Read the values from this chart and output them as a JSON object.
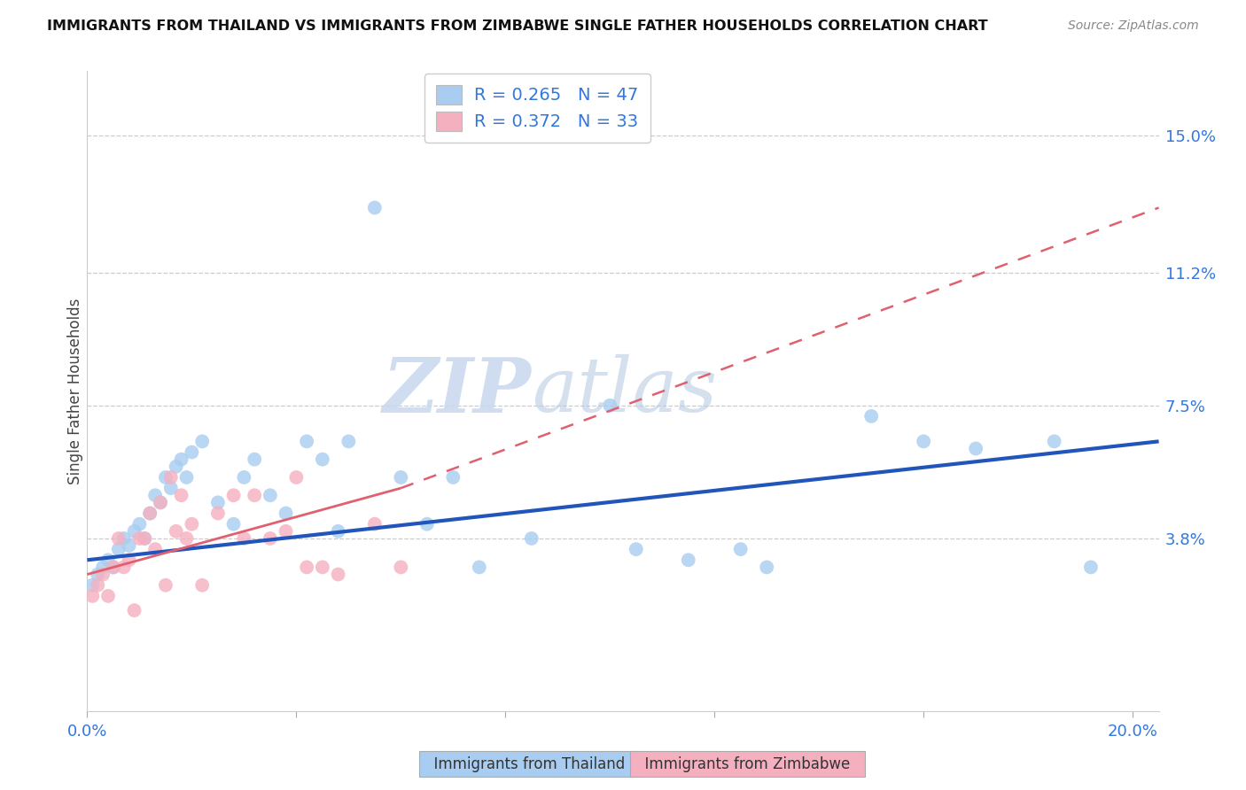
{
  "title": "IMMIGRANTS FROM THAILAND VS IMMIGRANTS FROM ZIMBABWE SINGLE FATHER HOUSEHOLDS CORRELATION CHART",
  "source": "Source: ZipAtlas.com",
  "ylabel": "Single Father Households",
  "xlim": [
    0.0,
    0.205
  ],
  "ylim": [
    -0.01,
    0.168
  ],
  "ytick_vals": [
    0.038,
    0.075,
    0.112,
    0.15
  ],
  "ytick_labels": [
    "3.8%",
    "7.5%",
    "11.2%",
    "15.0%"
  ],
  "r_thailand": 0.265,
  "n_thailand": 47,
  "r_zimbabwe": 0.372,
  "n_zimbabwe": 33,
  "color_thailand": "#a8cdf0",
  "color_zimbabwe": "#f5b0c0",
  "line_color_thailand": "#2255bb",
  "line_color_zimbabwe": "#e06070",
  "background_color": "#ffffff",
  "watermark_zip": "ZIP",
  "watermark_atlas": "atlas",
  "legend_color": "#3377dd",
  "th_x": [
    0.001,
    0.002,
    0.003,
    0.004,
    0.005,
    0.006,
    0.007,
    0.008,
    0.009,
    0.01,
    0.011,
    0.012,
    0.013,
    0.014,
    0.015,
    0.016,
    0.017,
    0.018,
    0.019,
    0.02,
    0.022,
    0.025,
    0.028,
    0.03,
    0.032,
    0.035,
    0.038,
    0.042,
    0.045,
    0.048,
    0.05,
    0.055,
    0.06,
    0.065,
    0.07,
    0.075,
    0.085,
    0.1,
    0.105,
    0.115,
    0.125,
    0.13,
    0.15,
    0.16,
    0.17,
    0.185,
    0.192
  ],
  "th_y": [
    0.025,
    0.028,
    0.03,
    0.032,
    0.03,
    0.035,
    0.038,
    0.036,
    0.04,
    0.042,
    0.038,
    0.045,
    0.05,
    0.048,
    0.055,
    0.052,
    0.058,
    0.06,
    0.055,
    0.062,
    0.065,
    0.048,
    0.042,
    0.055,
    0.06,
    0.05,
    0.045,
    0.065,
    0.06,
    0.04,
    0.065,
    0.13,
    0.055,
    0.042,
    0.055,
    0.03,
    0.038,
    0.075,
    0.035,
    0.032,
    0.035,
    0.03,
    0.072,
    0.065,
    0.063,
    0.065,
    0.03
  ],
  "zw_x": [
    0.001,
    0.002,
    0.003,
    0.004,
    0.005,
    0.006,
    0.007,
    0.008,
    0.009,
    0.01,
    0.011,
    0.012,
    0.013,
    0.014,
    0.015,
    0.016,
    0.017,
    0.018,
    0.019,
    0.02,
    0.022,
    0.025,
    0.028,
    0.03,
    0.032,
    0.035,
    0.038,
    0.04,
    0.042,
    0.045,
    0.048,
    0.055,
    0.06
  ],
  "zw_y": [
    0.022,
    0.025,
    0.028,
    0.022,
    0.03,
    0.038,
    0.03,
    0.032,
    0.018,
    0.038,
    0.038,
    0.045,
    0.035,
    0.048,
    0.025,
    0.055,
    0.04,
    0.05,
    0.038,
    0.042,
    0.025,
    0.045,
    0.05,
    0.038,
    0.05,
    0.038,
    0.04,
    0.055,
    0.03,
    0.03,
    0.028,
    0.042,
    0.03
  ]
}
